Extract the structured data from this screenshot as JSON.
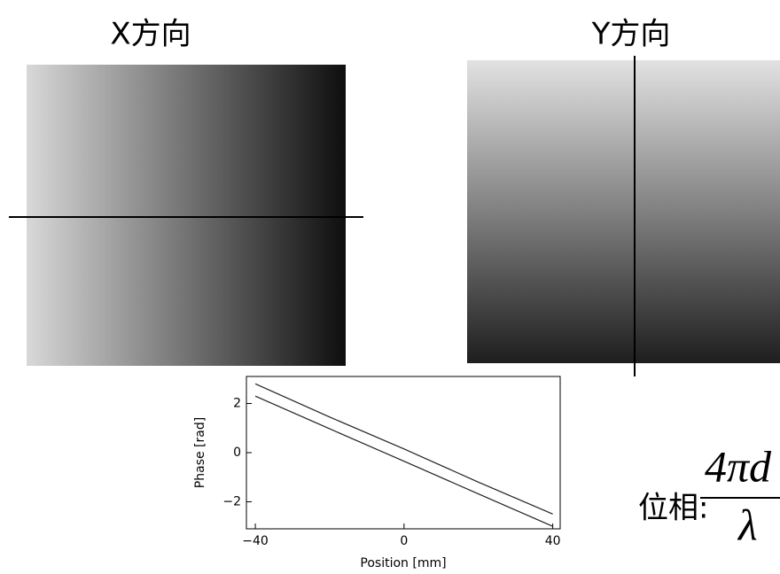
{
  "headings": {
    "left": "X方向",
    "right": "Y方向"
  },
  "formula": {
    "prefix": "位相:",
    "numerator": "4πd",
    "denominator": "λ"
  },
  "chart_data": {
    "type": "line",
    "x": [
      -40,
      -20,
      0,
      20,
      40
    ],
    "series": [
      {
        "color": "#222222",
        "values": [
          2.8,
          1.45,
          0.15,
          -1.2,
          -2.5
        ]
      },
      {
        "color": "#222222",
        "values": [
          2.3,
          0.97,
          -0.35,
          -1.68,
          -3.0
        ]
      }
    ],
    "x_label": "Position [mm]",
    "y_label": "Phase [rad]",
    "xlim": [
      -42.4,
      42
    ],
    "ylim": [
      -3.1,
      3.1
    ],
    "xticks": [
      {
        "value": -40,
        "label": "−40"
      },
      0,
      40
    ],
    "yticks": [
      {
        "value": -2,
        "label": "−2"
      },
      0,
      2
    ]
  }
}
